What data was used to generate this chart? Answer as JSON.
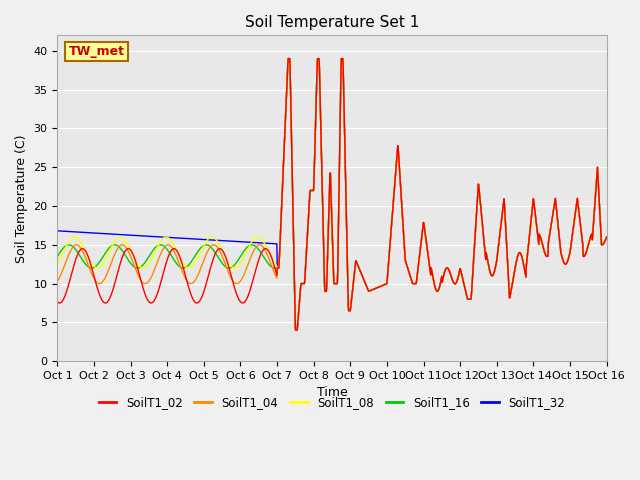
{
  "title": "Soil Temperature Set 1",
  "xlabel": "Time",
  "ylabel": "Soil Temperature (C)",
  "ylim": [
    0,
    42
  ],
  "yticks": [
    0,
    5,
    10,
    15,
    20,
    25,
    30,
    35,
    40
  ],
  "x_labels": [
    "Oct 1",
    "Oct 2",
    "Oct 3",
    "Oct 4",
    "Oct 5",
    "Oct 6",
    "Oct 7",
    "Oct 8",
    "Oct 9",
    "Oct 10",
    "Oct 11",
    "Oct 12",
    "Oct 13",
    "Oct 14",
    "Oct 15",
    "Oct 16"
  ],
  "series_names": [
    "SoilT1_02",
    "SoilT1_04",
    "SoilT1_08",
    "SoilT1_16",
    "SoilT1_32"
  ],
  "series_colors": [
    "#ff0000",
    "#ff8800",
    "#ffff00",
    "#00cc00",
    "#0000ff"
  ],
  "annotation_text": "TW_met",
  "annotation_color": "#cc0000",
  "annotation_bg": "#ffff99",
  "annotation_border": "#aa6600",
  "background_color": "#e8e8e8",
  "fig_bg_color": "#f0f0f0",
  "title_fontsize": 11,
  "axis_fontsize": 9,
  "legend_fontsize": 8.5,
  "tick_fontsize": 8
}
